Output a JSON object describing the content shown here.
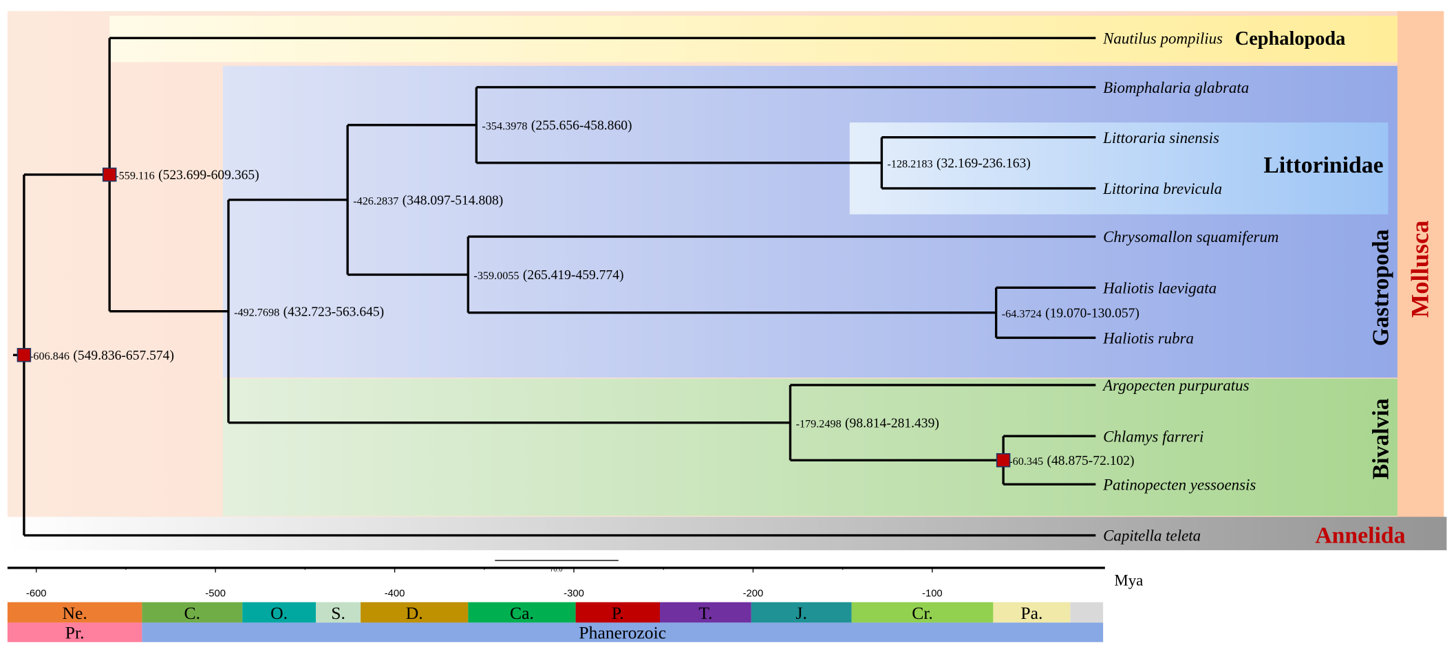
{
  "tree": {
    "age": -606.846,
    "ci": "(549.836-657.574)",
    "marker": true,
    "children": [
      {
        "age": -559.116,
        "ci": "(523.699-609.365)",
        "marker": true,
        "children": [
          {
            "name": "Nautilus pompilius"
          },
          {
            "age": -492.7698,
            "ci": "(432.723-563.645)",
            "children": [
              {
                "age": -426.2837,
                "ci": "(348.097-514.808)",
                "children": [
                  {
                    "age": -354.3978,
                    "ci": "(255.656-458.860)",
                    "children": [
                      {
                        "name": "Biomphalaria glabrata"
                      },
                      {
                        "age": -128.2183,
                        "ci": "(32.169-236.163)",
                        "children": [
                          {
                            "name": "Littoraria sinensis"
                          },
                          {
                            "name": "Littorina brevicula"
                          }
                        ]
                      }
                    ]
                  },
                  {
                    "age": -359.0055,
                    "ci": "(265.419-459.774)",
                    "children": [
                      {
                        "name": "Chrysomallon squamiferum"
                      },
                      {
                        "age": -64.3724,
                        "ci": "(19.070-130.057)",
                        "children": [
                          {
                            "name": "Haliotis laevigata"
                          },
                          {
                            "name": "Haliotis rubra"
                          }
                        ]
                      }
                    ]
                  }
                ]
              },
              {
                "age": -179.2498,
                "ci": "(98.814-281.439)",
                "children": [
                  {
                    "name": "Argopecten purpuratus"
                  },
                  {
                    "age": -60.345,
                    "ci": "(48.875-72.102)",
                    "marker": true,
                    "children": [
                      {
                        "name": "Chlamys farreri"
                      },
                      {
                        "name": "Patinopecten yessoensis"
                      }
                    ]
                  }
                ]
              }
            ]
          }
        ]
      },
      {
        "name": "Capitella teleta"
      }
    ]
  },
  "groups": {
    "cephalopoda": "Cephalopoda",
    "littorinidae": "Littorinidae",
    "gastropoda": "Gastropoda",
    "bivalvia": "Bivalvia",
    "mollusca": "Mollusca",
    "annelida": "Annelida"
  },
  "colors": {
    "marker": "#c00000",
    "marker_border": "#1f3864",
    "group_label_red": "#c00000"
  },
  "scale_bar": "70.0",
  "axis": {
    "unit": "Mya",
    "ticks": [
      -600,
      -500,
      -400,
      -300,
      -200,
      -100
    ]
  },
  "periods": [
    {
      "label": "Ne.",
      "from": -632,
      "to": -541,
      "color": "#ed7d31"
    },
    {
      "label": "C.",
      "from": -541,
      "to": -485,
      "color": "#70ad47"
    },
    {
      "label": "O.",
      "from": -485,
      "to": -444,
      "color": "#00a8a0"
    },
    {
      "label": "S.",
      "from": -444,
      "to": -419,
      "color": "#c3e0c6"
    },
    {
      "label": "D.",
      "from": -419,
      "to": -359,
      "color": "#bf9000"
    },
    {
      "label": "Ca.",
      "from": -359,
      "to": -299,
      "color": "#00b050"
    },
    {
      "label": "P.",
      "from": -299,
      "to": -252,
      "color": "#c00000"
    },
    {
      "label": "T.",
      "from": -252,
      "to": -201,
      "color": "#7030a0"
    },
    {
      "label": "J.",
      "from": -201,
      "to": -145,
      "color": "#1e9294"
    },
    {
      "label": "Cr.",
      "from": -145,
      "to": -66,
      "color": "#92d050"
    },
    {
      "label": "Pa.",
      "from": -66,
      "to": -23,
      "color": "#f0e9a8"
    },
    {
      "label": "",
      "from": -23,
      "to": 0,
      "color": "#d9d9d9"
    }
  ],
  "eons": [
    {
      "label": "Pr.",
      "from": -632,
      "to": -541,
      "color": "#ff7f9e"
    },
    {
      "label": "Phanerozoic",
      "from": -541,
      "to": 0,
      "color": "#87a8e5"
    }
  ]
}
